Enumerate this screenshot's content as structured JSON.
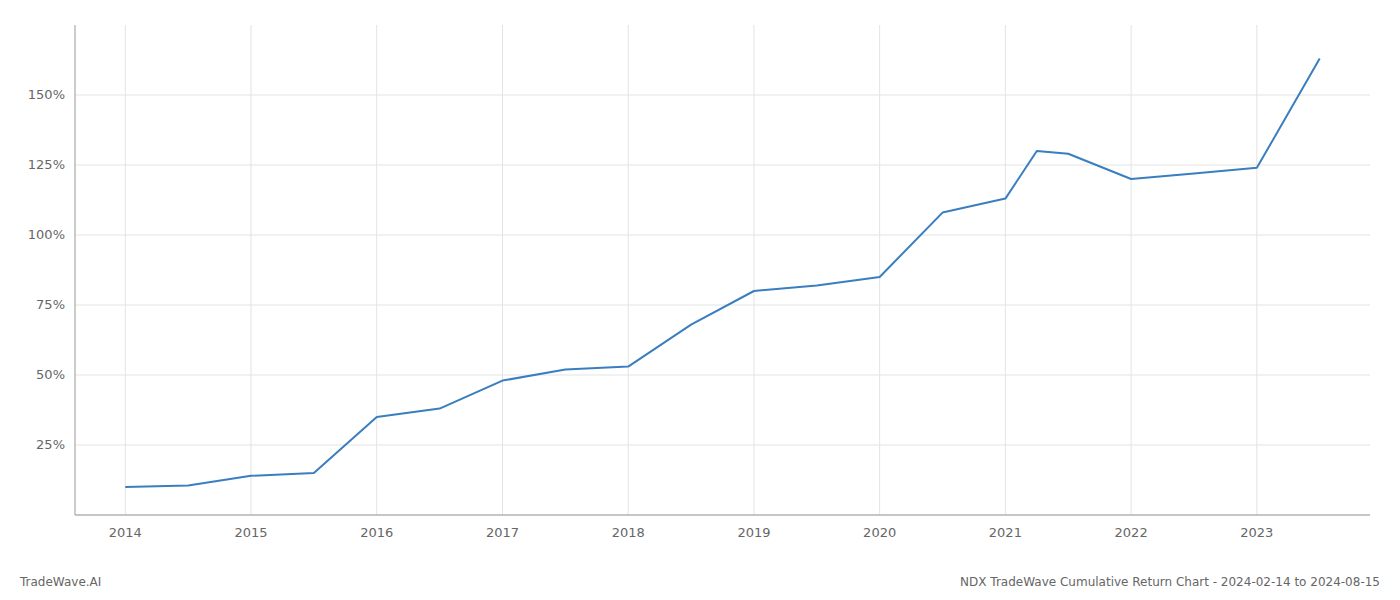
{
  "chart_data": {
    "type": "line",
    "title": "NDX TradeWave Cumulative Return Chart - 2024-02-14 to 2024-08-15",
    "annotations": [
      "TradeWave.AI"
    ],
    "x": [
      2014.0,
      2014.5,
      2015.0,
      2015.5,
      2016.0,
      2016.5,
      2017.0,
      2017.5,
      2018.0,
      2018.5,
      2019.0,
      2019.5,
      2020.0,
      2020.5,
      2021.0,
      2021.25,
      2021.5,
      2022.0,
      2022.5,
      2023.0,
      2023.5
    ],
    "values": [
      10,
      10.5,
      14,
      15,
      35,
      38,
      48,
      52,
      53,
      68,
      80,
      82,
      85,
      108,
      113,
      130,
      129,
      120,
      122,
      124,
      163
    ],
    "color": "#3a7ebf",
    "xlim": [
      2013.6,
      2023.9
    ],
    "xticks": [
      2014,
      2015,
      2016,
      2017,
      2018,
      2019,
      2020,
      2021,
      2022,
      2023
    ],
    "ylim": [
      0,
      175
    ],
    "yticks": [
      {
        "value": 0,
        "label": null
      },
      {
        "value": 25,
        "label": "25%"
      },
      {
        "value": 50,
        "label": "50%"
      },
      {
        "value": 75,
        "label": "75%"
      },
      {
        "value": 100,
        "label": "100%"
      },
      {
        "value": 125,
        "label": "125%"
      },
      {
        "value": 150,
        "label": "150%"
      }
    ],
    "grid": true
  }
}
